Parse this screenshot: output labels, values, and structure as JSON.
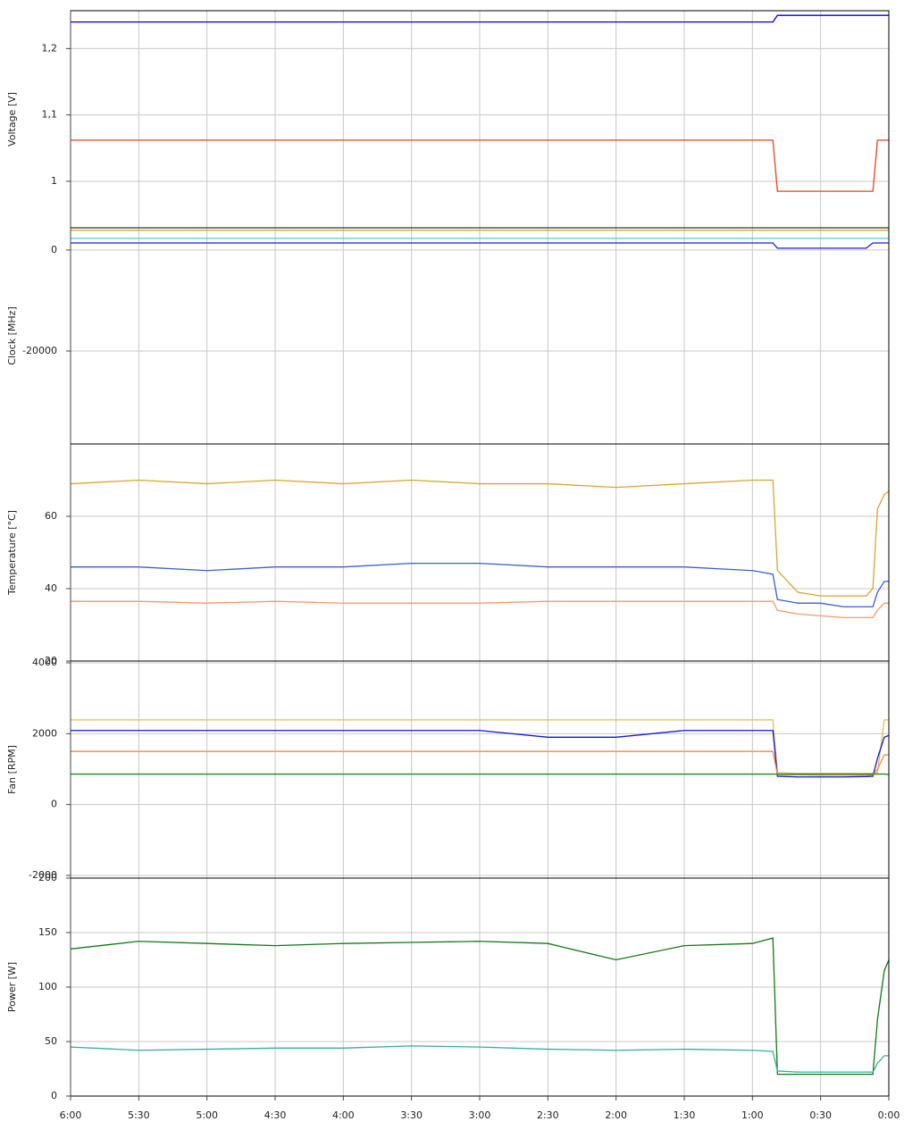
{
  "chart_data": [
    {
      "type": "line",
      "ylabel": "Voltage [V]",
      "x": [
        360,
        330,
        300,
        270,
        240,
        210,
        180,
        150,
        120,
        90,
        60,
        51,
        49,
        40,
        30,
        20,
        10,
        7,
        5,
        2,
        0
      ],
      "xlim": [
        360,
        0
      ],
      "ylim": [
        0.93,
        1.257
      ],
      "yticks": [
        1,
        {
          "value": 1.1,
          "label": "1,1"
        },
        {
          "value": 1.2,
          "label": "1,2"
        }
      ],
      "grid": true,
      "series": [
        {
          "color": "#0000ee",
          "values": [
            1.24,
            1.24,
            1.24,
            1.24,
            1.24,
            1.24,
            1.24,
            1.24,
            1.24,
            1.24,
            1.24,
            1.24,
            1.25,
            1.25,
            1.25,
            1.25,
            1.25,
            1.25,
            1.25,
            1.25,
            1.25
          ]
        },
        {
          "color": "#e8421a",
          "values": [
            1.062,
            1.062,
            1.062,
            1.062,
            1.062,
            1.062,
            1.062,
            1.062,
            1.062,
            1.062,
            1.062,
            1.062,
            0.985,
            0.985,
            0.985,
            0.985,
            0.985,
            0.985,
            1.062,
            1.062,
            1.062
          ]
        }
      ]
    },
    {
      "type": "line",
      "ylabel": "Clock [MHz]",
      "x": [
        360,
        330,
        300,
        270,
        240,
        210,
        180,
        150,
        120,
        90,
        60,
        51,
        49,
        40,
        30,
        20,
        10,
        7,
        5,
        2,
        0
      ],
      "xlim": [
        360,
        0
      ],
      "ylim": [
        -38400,
        4400
      ],
      "yticks": [
        -20000,
        0
      ],
      "grid": true,
      "series": [
        {
          "color": "#c8b030",
          "values": [
            3900,
            3900,
            3900,
            3900,
            3900,
            3900,
            3900,
            3900,
            3900,
            3900,
            3900,
            3900,
            3900,
            3900,
            3900,
            3900,
            3900,
            3900,
            3900,
            3900,
            3900
          ]
        },
        {
          "color": "#46d0e0",
          "values": [
            2300,
            2300,
            2300,
            2300,
            2300,
            2300,
            2300,
            2300,
            2300,
            2300,
            2300,
            2300,
            2300,
            2300,
            2300,
            2300,
            2300,
            2300,
            2300,
            2300,
            2300
          ]
        },
        {
          "color": "#1a1ae0",
          "values": [
            1400,
            1400,
            1400,
            1400,
            1400,
            1400,
            1400,
            1400,
            1400,
            1400,
            1400,
            1400,
            350,
            350,
            350,
            350,
            350,
            1400,
            1400,
            1400,
            1400
          ]
        }
      ]
    },
    {
      "type": "line",
      "ylabel": "Temperature [°C]",
      "x": [
        360,
        330,
        300,
        270,
        240,
        210,
        180,
        150,
        120,
        90,
        60,
        51,
        49,
        40,
        30,
        20,
        10,
        7,
        5,
        2,
        0
      ],
      "xlim": [
        360,
        0
      ],
      "ylim": [
        20,
        80
      ],
      "yticks": [
        20,
        40,
        60
      ],
      "grid": true,
      "series": [
        {
          "color": "#dba530",
          "values": [
            69,
            70,
            69,
            70,
            69,
            70,
            69,
            69,
            68,
            69,
            70,
            70,
            45,
            39,
            38,
            38,
            38,
            40,
            62,
            66,
            67
          ]
        },
        {
          "color": "#3a5fd0",
          "values": [
            46,
            46,
            45,
            46,
            46,
            47,
            47,
            46,
            46,
            46,
            45,
            44,
            37,
            36,
            36,
            35,
            35,
            35,
            39,
            42,
            42
          ]
        },
        {
          "color": "#f59a6a",
          "values": [
            36.5,
            36.5,
            36,
            36.5,
            36,
            36,
            36,
            36.5,
            36.5,
            36.5,
            36.5,
            36.5,
            34,
            33,
            32.5,
            32,
            32,
            32,
            34,
            36,
            36
          ]
        }
      ]
    },
    {
      "type": "line",
      "ylabel": "Fan [RPM]",
      "x": [
        360,
        330,
        300,
        270,
        240,
        210,
        180,
        150,
        120,
        90,
        60,
        51,
        49,
        40,
        30,
        20,
        10,
        7,
        5,
        2,
        0
      ],
      "xlim": [
        360,
        0
      ],
      "ylim": [
        -2075,
        4050
      ],
      "yticks": [
        -2000,
        0,
        2000,
        4000
      ],
      "grid": true,
      "series": [
        {
          "color": "#e6bd4a",
          "values": [
            2390,
            2390,
            2390,
            2390,
            2390,
            2390,
            2390,
            2390,
            2390,
            2390,
            2390,
            2390,
            900,
            880,
            880,
            880,
            880,
            880,
            900,
            2390,
            2390
          ]
        },
        {
          "color": "#1414e6",
          "values": [
            2090,
            2090,
            2090,
            2090,
            2090,
            2090,
            2090,
            1900,
            1900,
            2090,
            2090,
            2090,
            800,
            780,
            780,
            780,
            790,
            800,
            1300,
            1900,
            1950
          ]
        },
        {
          "color": "#f58a3a",
          "values": [
            1500,
            1500,
            1500,
            1500,
            1500,
            1500,
            1500,
            1500,
            1500,
            1500,
            1500,
            1500,
            850,
            840,
            830,
            830,
            830,
            840,
            1000,
            1400,
            1400
          ]
        },
        {
          "color": "#1e8c1e",
          "values": [
            860,
            860,
            860,
            860,
            860,
            860,
            860,
            860,
            860,
            860,
            860,
            860,
            860,
            860,
            860,
            860,
            860,
            860,
            860,
            860,
            850
          ]
        }
      ]
    },
    {
      "type": "line",
      "ylabel": "Power [W]",
      "x": [
        360,
        330,
        300,
        270,
        240,
        210,
        180,
        150,
        120,
        90,
        60,
        51,
        49,
        40,
        30,
        20,
        10,
        7,
        5,
        2,
        0
      ],
      "xlim": [
        360,
        0
      ],
      "ylim": [
        0,
        200
      ],
      "yticks": [
        0,
        50,
        100,
        150,
        200
      ],
      "grid": true,
      "xticks": [
        {
          "value": 360,
          "label": "6:00"
        },
        {
          "value": 330,
          "label": "5:30"
        },
        {
          "value": 300,
          "label": "5:00"
        },
        {
          "value": 270,
          "label": "4:30"
        },
        {
          "value": 240,
          "label": "4:00"
        },
        {
          "value": 210,
          "label": "3:30"
        },
        {
          "value": 180,
          "label": "3:00"
        },
        {
          "value": 150,
          "label": "2:30"
        },
        {
          "value": 120,
          "label": "2:00"
        },
        {
          "value": 90,
          "label": "1:30"
        },
        {
          "value": 60,
          "label": "1:00"
        },
        {
          "value": 30,
          "label": "0:30"
        },
        {
          "value": 0,
          "label": "0:00"
        }
      ],
      "series": [
        {
          "color": "#117a11",
          "values": [
            135,
            142,
            140,
            138,
            140,
            141,
            142,
            140,
            125,
            138,
            140,
            145,
            20,
            20,
            20,
            20,
            20,
            20,
            70,
            115,
            125
          ]
        },
        {
          "color": "#30b0a0",
          "values": [
            45,
            42,
            43,
            44,
            44,
            46,
            45,
            43,
            42,
            43,
            42,
            41,
            23,
            22,
            22,
            22,
            22,
            22,
            30,
            37,
            37
          ]
        }
      ]
    }
  ]
}
